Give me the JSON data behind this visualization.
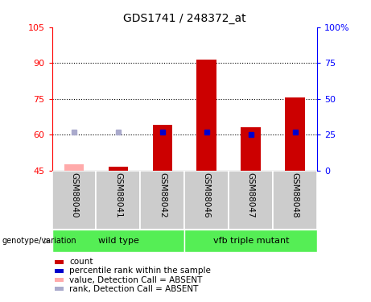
{
  "title": "GDS1741 / 248372_at",
  "samples": [
    "GSM88040",
    "GSM88041",
    "GSM88042",
    "GSM88046",
    "GSM88047",
    "GSM88048"
  ],
  "count_values": [
    47.5,
    46.5,
    64.0,
    91.5,
    63.0,
    75.5
  ],
  "count_base": 45,
  "count_absent": [
    true,
    false,
    false,
    false,
    false,
    false
  ],
  "rank_pct": [
    27,
    27,
    27,
    27,
    25,
    27
  ],
  "rank_absent": [
    true,
    true,
    false,
    false,
    false,
    false
  ],
  "ylim_left": [
    45,
    105
  ],
  "ylim_right": [
    0,
    100
  ],
  "yticks_left": [
    45,
    60,
    75,
    90,
    105
  ],
  "yticks_right": [
    0,
    25,
    50,
    75,
    100
  ],
  "ytick_labels_left": [
    "45",
    "60",
    "75",
    "90",
    "105"
  ],
  "ytick_labels_right": [
    "0",
    "25",
    "50",
    "75",
    "100%"
  ],
  "color_count": "#cc0000",
  "color_count_absent": "#ffaaaa",
  "color_rank": "#0000cc",
  "color_rank_absent": "#aaaacc",
  "green_color": "#55ee55",
  "sample_bg": "#cccccc",
  "legend_items": [
    [
      "#cc0000",
      "count"
    ],
    [
      "#0000cc",
      "percentile rank within the sample"
    ],
    [
      "#ffaaaa",
      "value, Detection Call = ABSENT"
    ],
    [
      "#aaaacc",
      "rank, Detection Call = ABSENT"
    ]
  ]
}
